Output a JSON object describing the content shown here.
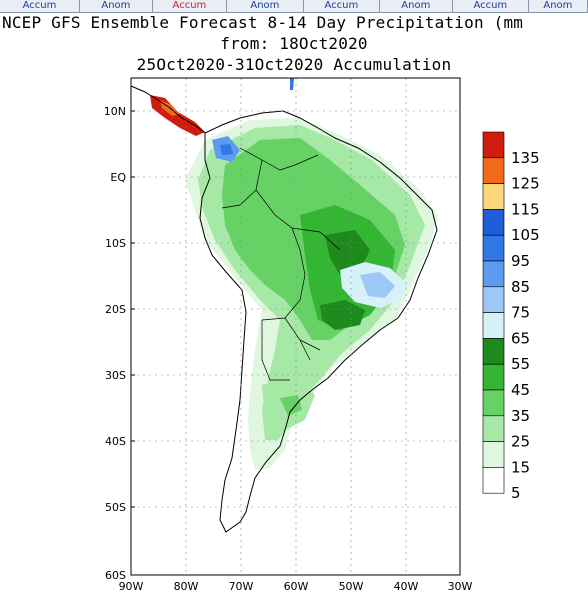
{
  "tabs": [
    {
      "label": "Accum",
      "active": false,
      "kind": "accum"
    },
    {
      "label": "Anom",
      "active": false,
      "kind": "anom"
    },
    {
      "label": "Accum",
      "active": true,
      "kind": "accum"
    },
    {
      "label": "Anom",
      "active": false,
      "kind": "anom"
    },
    {
      "label": "Accum",
      "active": false,
      "kind": "accum"
    },
    {
      "label": "Anom",
      "active": false,
      "kind": "anom"
    },
    {
      "label": "Accum",
      "active": false,
      "kind": "accum"
    },
    {
      "label": "Anom",
      "active": false,
      "kind": "anom"
    }
  ],
  "title": {
    "line1": "NCEP GFS Ensemble Forecast 8-14 Day Precipitation (mm",
    "line2": "from: 18Oct2020",
    "line3": "25Oct2020-31Oct2020 Accumulation"
  },
  "axes": {
    "lat_labels": [
      "10N",
      "EQ",
      "10S",
      "20S",
      "30S",
      "40S",
      "50S",
      "60S"
    ],
    "lon_labels": [
      "90W",
      "80W",
      "70W",
      "60W",
      "50W",
      "40W",
      "30W"
    ]
  },
  "colorbar": {
    "bins": [
      {
        "label": "135",
        "color": "#d01c0e"
      },
      {
        "label": "125",
        "color": "#f06a1a"
      },
      {
        "label": "115",
        "color": "#fdd77a"
      },
      {
        "label": "105",
        "color": "#1f5dd6"
      },
      {
        "label": "95",
        "color": "#2f78e6"
      },
      {
        "label": "85",
        "color": "#5b9bf0"
      },
      {
        "label": "75",
        "color": "#9cc8f5"
      },
      {
        "label": "65",
        "color": "#d6f1f8"
      },
      {
        "label": "55",
        "color": "#1e8a1e"
      },
      {
        "label": "45",
        "color": "#34b534"
      },
      {
        "label": "35",
        "color": "#66d266"
      },
      {
        "label": "25",
        "color": "#a6e8a6"
      },
      {
        "label": "15",
        "color": "#dff7df"
      },
      {
        "label": "5",
        "color": "#ffffff"
      }
    ]
  },
  "colors": {
    "land_outline": "#000000",
    "grid": "#888888"
  }
}
